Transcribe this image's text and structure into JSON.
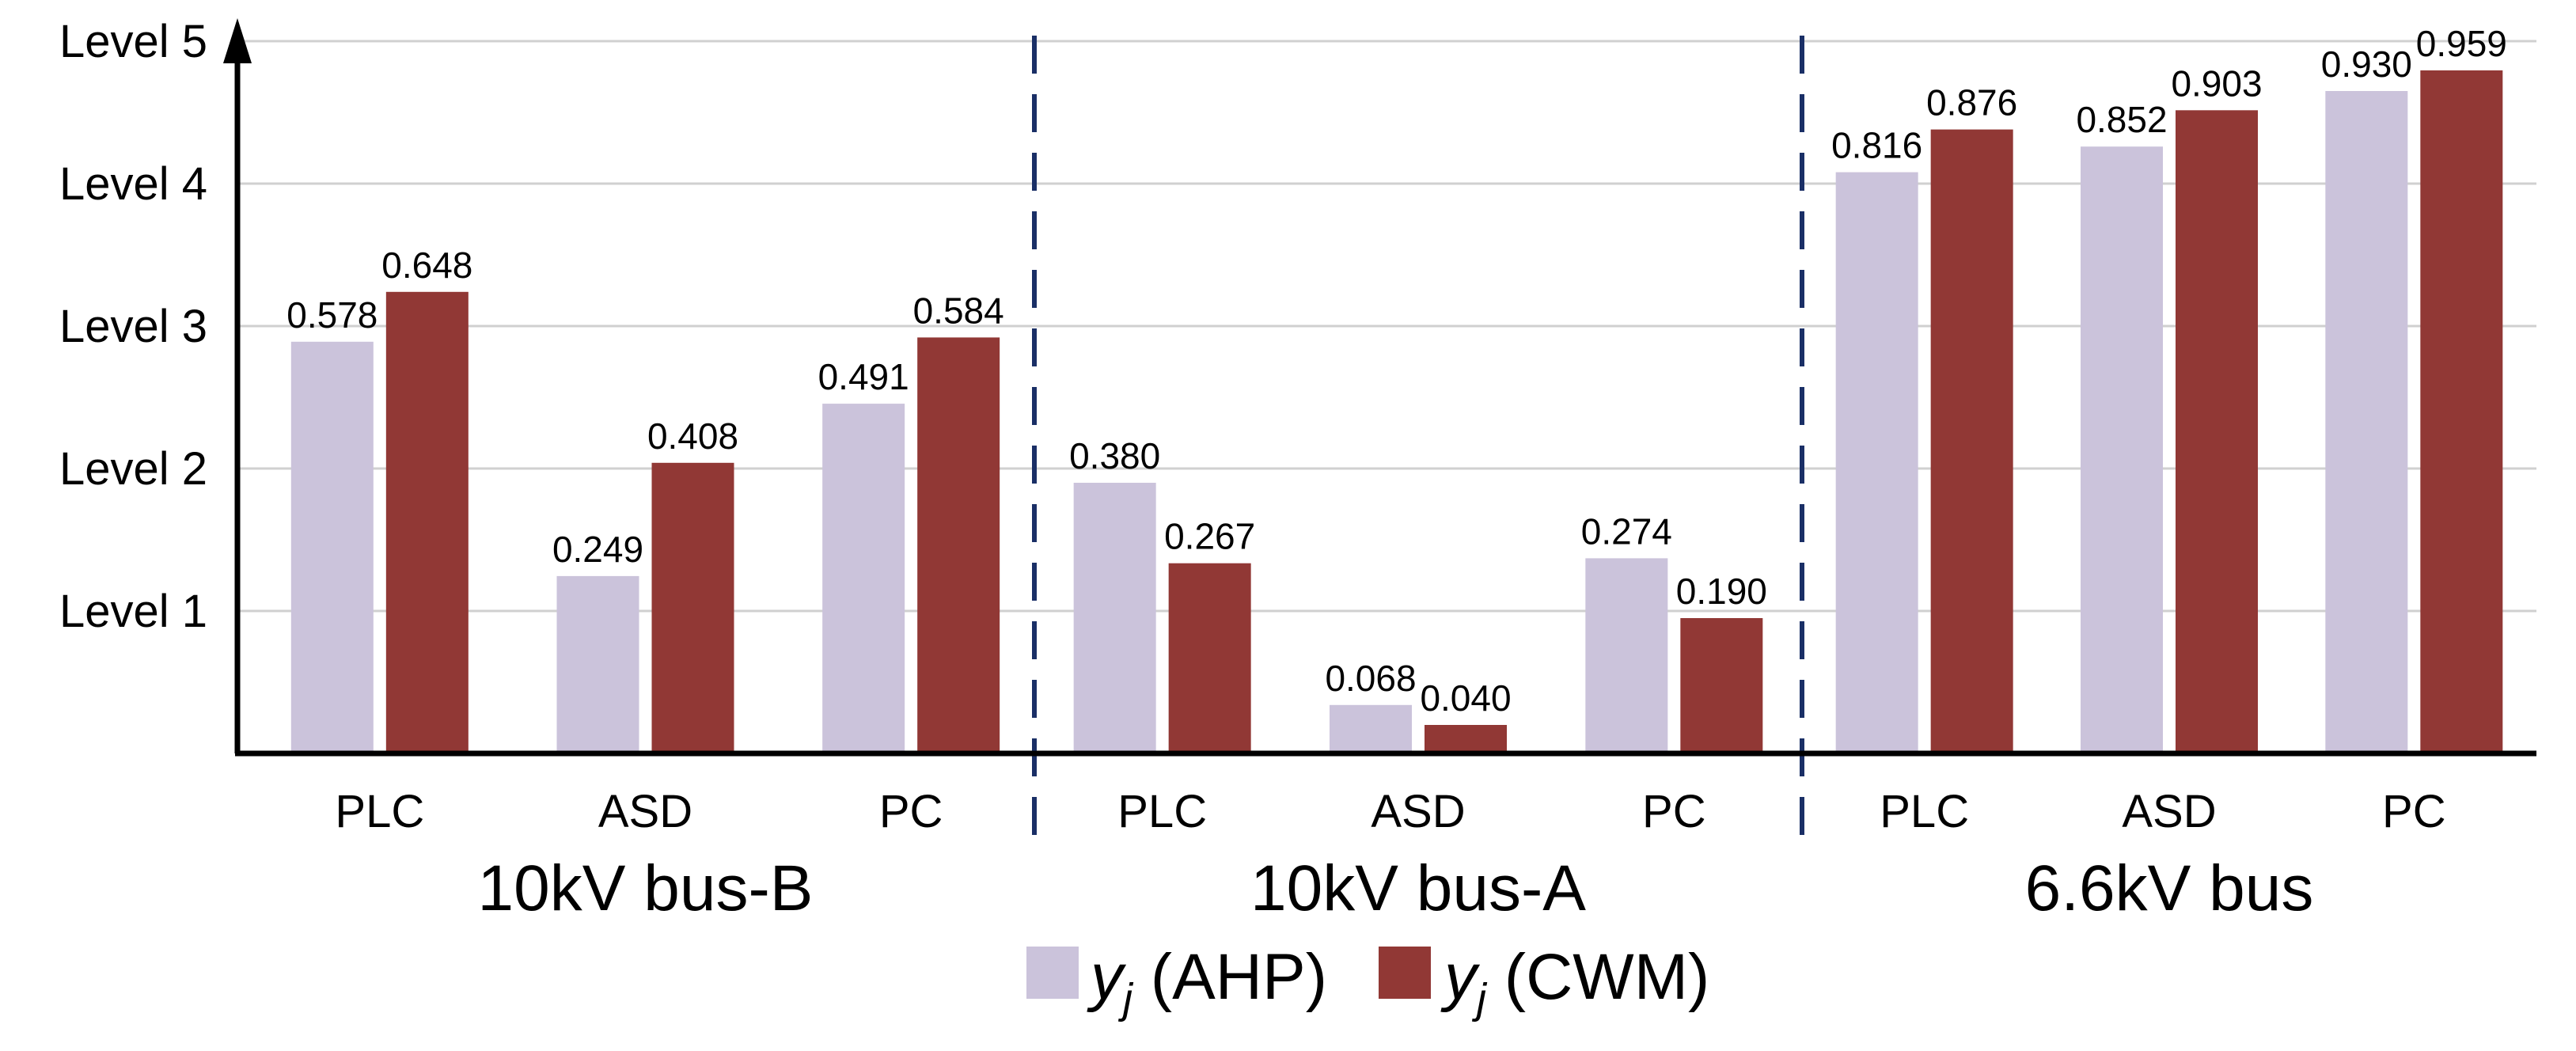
{
  "chart_data": {
    "type": "bar",
    "groups": [
      {
        "name": "10kV bus-B",
        "categories": [
          "PLC",
          "ASD",
          "PC"
        ]
      },
      {
        "name": "10kV bus-A",
        "categories": [
          "PLC",
          "ASD",
          "PC"
        ]
      },
      {
        "name": "6.6kV bus",
        "categories": [
          "PLC",
          "ASD",
          "PC"
        ]
      }
    ],
    "series": [
      {
        "name": "yj (AHP)",
        "legend_base": "y",
        "legend_sub": "j",
        "legend_rest": " (AHP)",
        "color": "#cbc3db",
        "values": [
          0.578,
          0.249,
          0.491,
          0.38,
          0.068,
          0.274,
          0.816,
          0.852,
          0.93
        ]
      },
      {
        "name": "yj (CWM)",
        "legend_base": "y",
        "legend_sub": "j",
        "legend_rest": " (CWM)",
        "color": "#913835",
        "values": [
          0.648,
          0.408,
          0.584,
          0.267,
          0.04,
          0.19,
          0.876,
          0.903,
          0.959
        ]
      }
    ],
    "y_ticks": [
      "Level 1",
      "Level 2",
      "Level 3",
      "Level 4",
      "Level 5"
    ],
    "ylim": [
      0,
      1
    ],
    "grid": true,
    "legend_position": "bottom-center",
    "data_labels": [
      [
        "0.578",
        "0.249",
        "0.491",
        "0.380",
        "0.068",
        "0.274",
        "0.816",
        "0.852",
        "0.930"
      ],
      [
        "0.648",
        "0.408",
        "0.584",
        "0.267",
        "0.040",
        "0.190",
        "0.876",
        "0.903",
        "0.959"
      ]
    ],
    "separator_color": "#1a2f66"
  }
}
